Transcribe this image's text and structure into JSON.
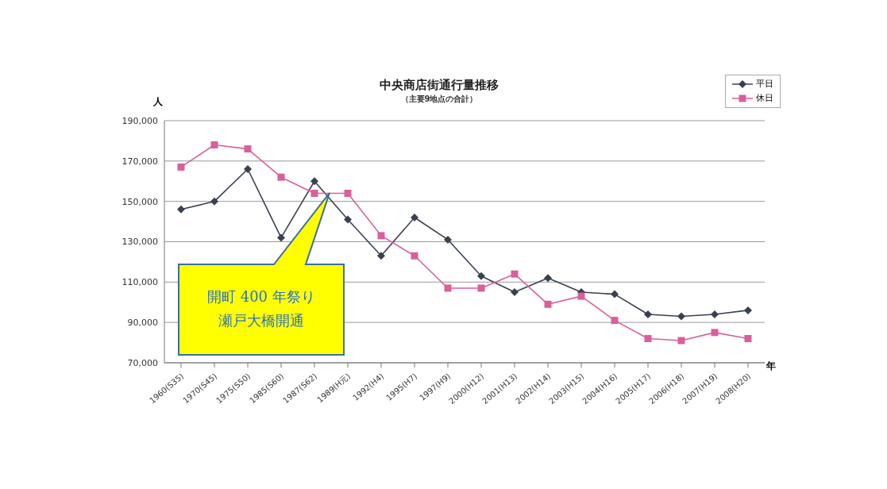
{
  "chart_data": {
    "type": "line",
    "title": "中央商店街通行量推移",
    "subtitle": "（主要9地点の合計）",
    "ylabel": "人",
    "xlabel": "年",
    "categories": [
      "1960(S35)",
      "1970(S45)",
      "1975(S50)",
      "1985(S60)",
      "1987(S62)",
      "1989(H元)",
      "1992(H4)",
      "1995(H7)",
      "1997(H9)",
      "2000(H12)",
      "2001(H13)",
      "2002(H14)",
      "2003(H15)",
      "2004(H16)",
      "2005(H17)",
      "2006(H18)",
      "2007(H19)",
      "2008(H20)"
    ],
    "series": [
      {
        "name": "平日",
        "color": "#3a4050",
        "marker": "diamond",
        "values": [
          146000,
          150000,
          166000,
          132000,
          160000,
          141000,
          123000,
          142000,
          131000,
          113000,
          105000,
          112000,
          105000,
          104000,
          94000,
          93000,
          94000,
          96000
        ]
      },
      {
        "name": "休日",
        "color": "#d9609a",
        "marker": "square",
        "values": [
          167000,
          178000,
          176000,
          162000,
          154000,
          154000,
          133000,
          123000,
          107000,
          107000,
          114000,
          99000,
          103000,
          91000,
          82000,
          81000,
          85000,
          82000
        ]
      }
    ],
    "ylim": [
      70000,
      190000
    ],
    "yticks": [
      {
        "value": 70000,
        "label": "70,000"
      },
      {
        "value": 90000,
        "label": "90,000"
      },
      {
        "value": 110000,
        "label": "110,000"
      },
      {
        "value": 130000,
        "label": "130,000"
      },
      {
        "value": 150000,
        "label": "150,000"
      },
      {
        "value": 170000,
        "label": "170,000"
      },
      {
        "value": 190000,
        "label": "190,000"
      }
    ],
    "grid": "y",
    "legend": "top right",
    "line_style": "solid",
    "annotations": [
      "開町 400 年祭り瀬戸大橋開通"
    ]
  }
}
